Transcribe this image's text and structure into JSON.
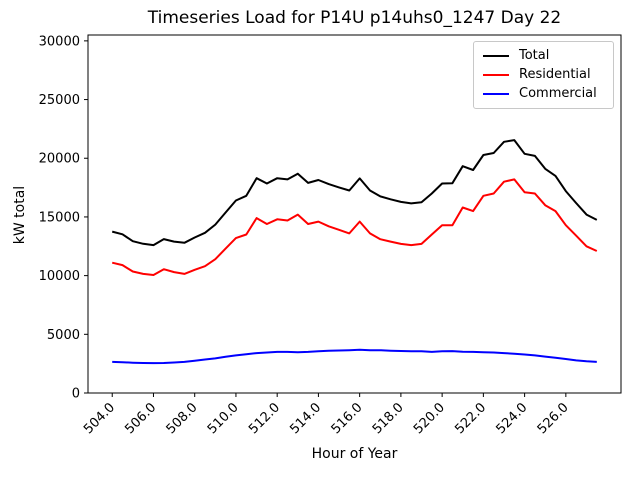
{
  "title": "Timeseries Load for P14U p14uhs0_1247  Day 22",
  "chart_data": {
    "type": "line",
    "title": "Timeseries Load for P14U p14uhs0_1247  Day 22",
    "xlabel": "Hour of Year",
    "ylabel": "kW total",
    "grid": false,
    "legend_position": "upper right",
    "xlim": [
      502.825,
      528.675
    ],
    "ylim": [
      0,
      30500
    ],
    "xticks": [
      504,
      506,
      508,
      510,
      512,
      514,
      516,
      518,
      520,
      522,
      524,
      526
    ],
    "xtick_labels": [
      "504.0",
      "506.0",
      "508.0",
      "510.0",
      "512.0",
      "514.0",
      "516.0",
      "518.0",
      "520.0",
      "522.0",
      "524.0",
      "526.0"
    ],
    "yticks": [
      0,
      5000,
      10000,
      15000,
      20000,
      25000,
      30000
    ],
    "x": [
      504.0,
      504.5,
      505.0,
      505.5,
      506.0,
      506.5,
      507.0,
      507.5,
      508.0,
      508.5,
      509.0,
      509.5,
      510.0,
      510.5,
      511.0,
      511.5,
      512.0,
      512.5,
      513.0,
      513.5,
      514.0,
      514.5,
      515.0,
      515.5,
      516.0,
      516.5,
      517.0,
      517.5,
      518.0,
      518.5,
      519.0,
      519.5,
      520.0,
      520.5,
      521.0,
      521.5,
      522.0,
      522.5,
      523.0,
      523.5,
      524.0,
      524.5,
      525.0,
      525.5,
      526.0,
      526.5,
      527.0,
      527.5
    ],
    "series": [
      {
        "name": "Total",
        "color": "#000000",
        "values": [
          13750,
          13520,
          12930,
          12710,
          12600,
          13110,
          12900,
          12800,
          13250,
          13650,
          14350,
          15380,
          16400,
          16800,
          18300,
          17850,
          18300,
          18200,
          18680,
          17900,
          18150,
          17800,
          17520,
          17250,
          18280,
          17250,
          16750,
          16500,
          16280,
          16150,
          16250,
          17000,
          17850,
          17870,
          19320,
          19000,
          20280,
          20450,
          21400,
          21550,
          20380,
          20200,
          19100,
          18500,
          17200,
          16180,
          15200,
          14750
        ]
      },
      {
        "name": "Residential",
        "color": "#ff0000",
        "values": [
          11100,
          10900,
          10350,
          10150,
          10050,
          10550,
          10300,
          10150,
          10500,
          10800,
          11400,
          12300,
          13200,
          13500,
          14900,
          14400,
          14800,
          14700,
          15200,
          14400,
          14600,
          14200,
          13900,
          13600,
          14600,
          13600,
          13100,
          12900,
          12700,
          12600,
          12700,
          13500,
          14300,
          14300,
          15800,
          15500,
          16800,
          17000,
          18000,
          18200,
          17100,
          17000,
          16000,
          15500,
          14300,
          13400,
          12500,
          12100
        ]
      },
      {
        "name": "Commercial",
        "color": "#0000ff",
        "values": [
          2650,
          2620,
          2580,
          2560,
          2550,
          2560,
          2600,
          2650,
          2750,
          2850,
          2950,
          3080,
          3200,
          3300,
          3400,
          3450,
          3500,
          3500,
          3480,
          3500,
          3550,
          3600,
          3620,
          3650,
          3680,
          3650,
          3650,
          3600,
          3580,
          3550,
          3550,
          3500,
          3550,
          3570,
          3520,
          3500,
          3480,
          3450,
          3400,
          3350,
          3280,
          3200,
          3100,
          3000,
          2900,
          2780,
          2700,
          2650
        ]
      }
    ]
  }
}
